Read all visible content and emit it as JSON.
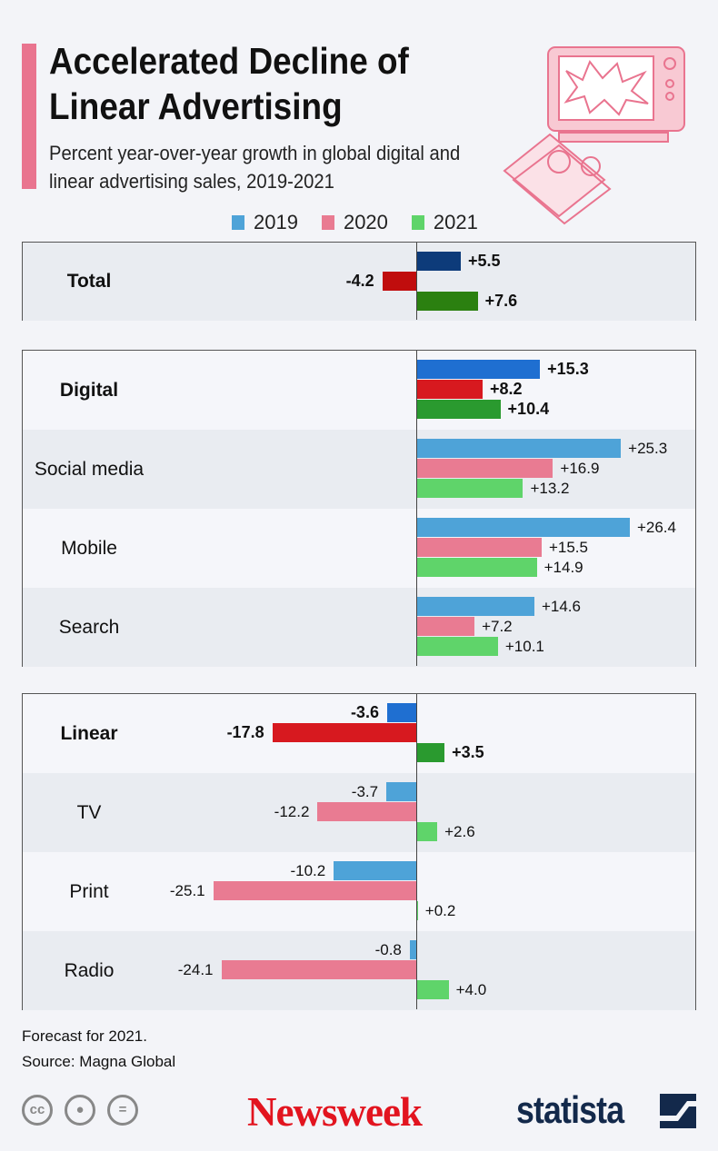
{
  "title": "Accelerated Decline of Linear Advertising",
  "subtitle": "Percent year-over-year growth in global digital and linear advertising sales, 2019-2021",
  "footnote": "Forecast for 2021.",
  "source": "Source: Magna Global",
  "logos": {
    "newsweek": "Newsweek",
    "statista": "statista",
    "license_icons": [
      "cc-icon",
      "attribution-icon",
      "no-derivatives-icon"
    ]
  },
  "chart_data": {
    "type": "bar",
    "orientation": "horizontal",
    "title": "Accelerated Decline of Linear Advertising",
    "legend": {
      "position": "top",
      "entries": [
        "2019",
        "2020",
        "2021"
      ]
    },
    "colors": {
      "normal": [
        "#4ea3d8",
        "#e97b92",
        "#5fd46a"
      ],
      "bold": [
        "#1f6fd1",
        "#d7191f",
        "#2a9a2f"
      ],
      "total": [
        "#0d3b7a",
        "#c00d0d",
        "#2b8010"
      ]
    },
    "panels": [
      {
        "rows": [
          {
            "label": "Total",
            "bold": true,
            "values": [
              5.5,
              -4.2,
              7.6
            ],
            "labels": [
              "+5.5",
              "-4.2",
              "+7.6"
            ]
          }
        ]
      },
      {
        "rows": [
          {
            "label": "Digital",
            "bold": true,
            "values": [
              15.3,
              8.2,
              10.4
            ],
            "labels": [
              "+15.3",
              "+8.2",
              "+10.4"
            ]
          },
          {
            "label": "Social media",
            "values": [
              25.3,
              16.9,
              13.2
            ],
            "labels": [
              "+25.3",
              "+16.9",
              "+13.2"
            ]
          },
          {
            "label": "Mobile",
            "values": [
              26.4,
              15.5,
              14.9
            ],
            "labels": [
              "+26.4",
              "+15.5",
              "+14.9"
            ]
          },
          {
            "label": "Search",
            "values": [
              14.6,
              7.2,
              10.1
            ],
            "labels": [
              "+14.6",
              "+7.2",
              "+10.1"
            ]
          }
        ]
      },
      {
        "rows": [
          {
            "label": "Linear",
            "bold": true,
            "values": [
              -3.6,
              -17.8,
              3.5
            ],
            "labels": [
              "-3.6",
              "-17.8",
              "+3.5"
            ]
          },
          {
            "label": "TV",
            "values": [
              -3.7,
              -12.2,
              2.6
            ],
            "labels": [
              "-3.7",
              "-12.2",
              "+2.6"
            ]
          },
          {
            "label": "Print",
            "values": [
              -10.2,
              -25.1,
              0.2
            ],
            "labels": [
              "-10.2",
              "-25.1",
              "+0.2"
            ]
          },
          {
            "label": "Radio",
            "values": [
              -0.8,
              -24.1,
              4.0
            ],
            "labels": [
              "-0.8",
              "-24.1",
              "+4.0"
            ]
          }
        ]
      }
    ]
  }
}
